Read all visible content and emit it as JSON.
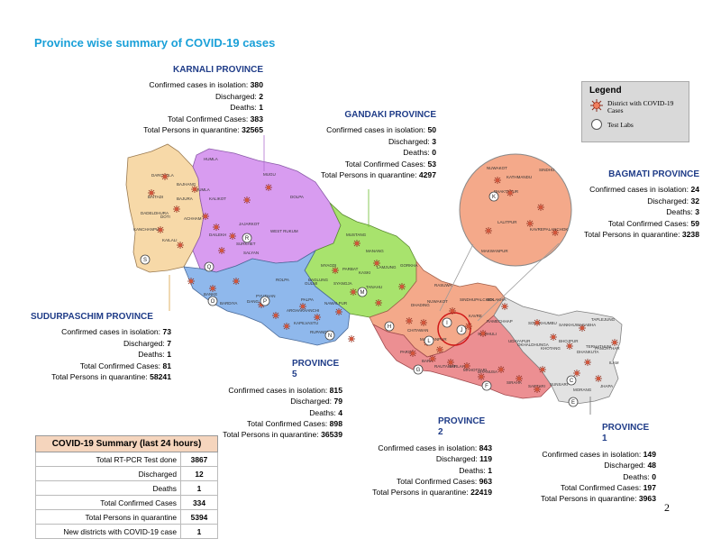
{
  "page_title": "Province wise summary of COVID-19 cases",
  "page_number": "2",
  "legend": {
    "title": "Legend",
    "items": [
      {
        "label": "District with COVID-19 Cases",
        "icon": "virus-icon"
      },
      {
        "label": "Test Labs",
        "icon": "circle-icon"
      }
    ]
  },
  "provinces": [
    {
      "key": "karnali",
      "name": "KARNALI PROVINCE",
      "isolation_label": "Confirmed cases in isolation:",
      "isolation": "380",
      "discharged_label": "Discharged:",
      "discharged": "2",
      "deaths_label": "Deaths:",
      "deaths": "1",
      "total_label": "Total Confirmed Cases:",
      "total": "383",
      "quarantine_label": "Total Persons in quarantine:",
      "quarantine": "32565",
      "color": "#d89cf0"
    },
    {
      "key": "gandaki",
      "name": "GANDAKI PROVINCE",
      "isolation_label": "Confirmed cases in isolation:",
      "isolation": "50",
      "discharged_label": "Discharged:",
      "discharged": "3",
      "deaths_label": "Deaths:",
      "deaths": "0",
      "total_label": "Total Confirmed Cases:",
      "total": "53",
      "quarantine_label": "Total Persons in quarantine:",
      "quarantine": "4297",
      "color": "#a8e36d"
    },
    {
      "key": "bagmati",
      "name": "BAGMATI PROVINCE",
      "isolation_label": "Confirmed cases in isolation:",
      "isolation": "24",
      "discharged_label": "Discharged:",
      "discharged": "32",
      "deaths_label": "Deaths:",
      "deaths": "3",
      "total_label": "Total Confirmed Cases:",
      "total": "59",
      "quarantine_label": "Total Persons in quarantine:",
      "quarantine": "3238",
      "color": "#f4a98a"
    },
    {
      "key": "sudurpaschim",
      "name": "SUDURPASCHIM PROVINCE",
      "isolation_label": "Confirmed cases in isolation:",
      "isolation": "73",
      "discharged_label": "Discharged:",
      "discharged": "7",
      "deaths_label": "Deaths:",
      "deaths": "1",
      "total_label": "Total Confirmed Cases:",
      "total": "81",
      "quarantine_label": "Total Persons in quarantine:",
      "quarantine": "58241",
      "color": "#f7d9a8"
    },
    {
      "key": "province5",
      "name": "PROVINCE 5",
      "isolation_label": "Confirmed cases in isolation:",
      "isolation": "815",
      "discharged_label": "Discharged:",
      "discharged": "79",
      "deaths_label": "Deaths:",
      "deaths": "4",
      "total_label": "Total Confirmed Cases:",
      "total": "898",
      "quarantine_label": "Total Persons in quarantine:",
      "quarantine": "36539",
      "color": "#8fb8ec"
    },
    {
      "key": "province2",
      "name": "PROVINCE 2",
      "isolation_label": "Confirmed cases in isolation:",
      "isolation": "843",
      "discharged_label": "Discharged:",
      "discharged": "119",
      "deaths_label": "Deaths:",
      "deaths": "1",
      "total_label": "Total Confirmed Cases:",
      "total": "963",
      "quarantine_label": "Total Persons in quarantine:",
      "quarantine": "22419",
      "color": "#ec8f92"
    },
    {
      "key": "province1",
      "name": "PROVINCE  1",
      "isolation_label": "Confirmed cases in isolation:",
      "isolation": "149",
      "discharged_label": "Discharged:",
      "discharged": "48",
      "deaths_label": "Deaths:",
      "deaths": "0",
      "total_label": "Total Confirmed Cases:",
      "total": "197",
      "quarantine_label": "Total Persons in quarantine:",
      "quarantine": "3963",
      "color": "#e2e2e2"
    }
  ],
  "summary": {
    "title": "COVID-19 Summary (last 24 hours)",
    "rows": [
      {
        "label": "Total RT-PCR Test done",
        "value": "3867"
      },
      {
        "label": "Discharged",
        "value": "12"
      },
      {
        "label": "Deaths",
        "value": "1"
      },
      {
        "label": "Total Confirmed Cases",
        "value": "334"
      },
      {
        "label": "Total Persons in quarantine",
        "value": "5394"
      },
      {
        "label": "New districts with COVID-19 case",
        "value": "1"
      }
    ]
  },
  "lab_markers": [
    "S",
    "Q",
    "R",
    "O",
    "P",
    "N",
    "M",
    "H",
    "L",
    "J",
    "G",
    "F",
    "C",
    "E",
    "K",
    "I"
  ],
  "map_labels": {
    "karnali": [
      "HUMLA",
      "MUGU",
      "DOLPA",
      "JUMLA",
      "KALIKOT",
      "JAJARKOT",
      "DAILEKH",
      "SURKHET",
      "SALYAN",
      "WEST RUKUM"
    ],
    "sudurpaschim": [
      "DARCHULA",
      "BAJHANG",
      "BAITADI",
      "BAJURA",
      "DADELDHURA",
      "DOTI",
      "ACHHAM",
      "KANCHANPUR",
      "KAILALI"
    ],
    "gandaki": [
      "MUSTANG",
      "MANANG",
      "MYAGDI",
      "KASKI",
      "LAMJUNG",
      "GORKHA",
      "TANAHU",
      "SYANGJA",
      "PARBAT",
      "BAGLUNG",
      "NAWALPUR"
    ],
    "province5": [
      "ROLPA",
      "PYUTHAN",
      "DANG",
      "BANKE",
      "BARDIYA",
      "GULMI",
      "PALPA",
      "ARGHAKHANCHI",
      "KAPILVASTU",
      "RUPANDEHI"
    ],
    "bagmati": [
      "RASUWA",
      "NUWAKOT",
      "SINDHUPALCHOK",
      "DOLAKHA",
      "CHITAWAN",
      "MAKWANPUR",
      "DHADING",
      "KAVRE",
      "SINDHULI",
      "RAMECHHAP"
    ],
    "province1": [
      "SOLUKHUMBU",
      "SANKHUWASABHA",
      "TAPLEJUNG",
      "KHOTANG",
      "BHOJPUR",
      "DHANKUTA",
      "TERHATHUM",
      "PANCHTHAR",
      "ILAM",
      "JHAPA",
      "MORANG",
      "SUNSARI",
      "UDAYAPUR",
      "OKHALDHUNGA"
    ],
    "province2": [
      "PARSA",
      "BARA",
      "RAUTAHAT",
      "SARLAHI",
      "MAHOTTARI",
      "DHANUSA",
      "SIRAHA",
      "SAPTARI"
    ],
    "inset": [
      "NUWAKOT",
      "KATHMANDU",
      "SINDHU",
      "BHAKTAPUR",
      "LALITPUR",
      "KAVREPALANCHOK",
      "MAKWANPUR"
    ]
  }
}
